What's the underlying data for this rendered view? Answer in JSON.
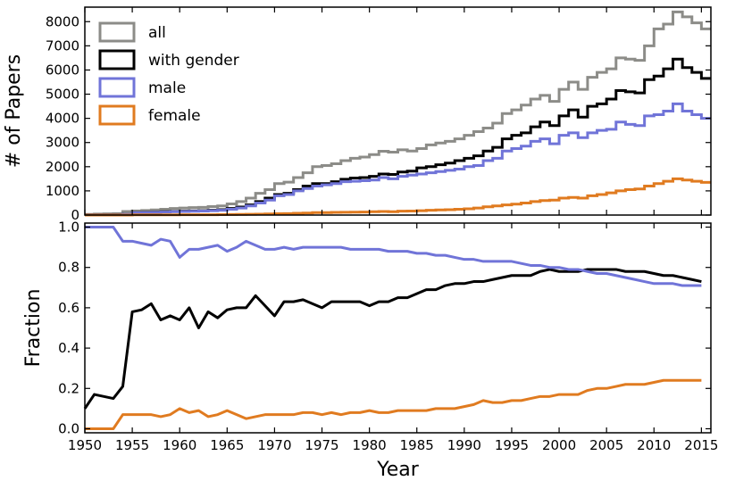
{
  "chart_data": [
    {
      "type": "step",
      "ylabel": "# of Papers",
      "xlim": [
        1950,
        2016
      ],
      "ylim": [
        0,
        8600
      ],
      "yticks": [
        0,
        1000,
        2000,
        3000,
        4000,
        5000,
        6000,
        7000,
        8000
      ],
      "legend": {
        "placement": "top-left",
        "entries": [
          "all",
          "with gender",
          "male",
          "female"
        ]
      },
      "x": [
        1950,
        1951,
        1952,
        1953,
        1954,
        1955,
        1956,
        1957,
        1958,
        1959,
        1960,
        1961,
        1962,
        1963,
        1964,
        1965,
        1966,
        1967,
        1968,
        1969,
        1970,
        1971,
        1972,
        1973,
        1974,
        1975,
        1976,
        1977,
        1978,
        1979,
        1980,
        1981,
        1982,
        1983,
        1984,
        1985,
        1986,
        1987,
        1988,
        1989,
        1990,
        1991,
        1992,
        1993,
        1994,
        1995,
        1996,
        1997,
        1998,
        1999,
        2000,
        2001,
        2002,
        2003,
        2004,
        2005,
        2006,
        2007,
        2008,
        2009,
        2010,
        2011,
        2012,
        2013,
        2014,
        2015
      ],
      "series": [
        {
          "name": "all",
          "color": "#8c8c88",
          "values": [
            30,
            40,
            50,
            60,
            150,
            170,
            190,
            210,
            240,
            270,
            290,
            310,
            320,
            350,
            380,
            460,
            560,
            700,
            900,
            1050,
            1300,
            1360,
            1550,
            1750,
            2000,
            2050,
            2120,
            2250,
            2350,
            2400,
            2500,
            2640,
            2600,
            2700,
            2650,
            2750,
            2900,
            2980,
            3050,
            3150,
            3300,
            3450,
            3600,
            3800,
            4200,
            4350,
            4550,
            4800,
            4950,
            4700,
            5200,
            5500,
            5200,
            5700,
            5900,
            6050,
            6500,
            6450,
            6400,
            7000,
            7700,
            7900,
            8400,
            8200,
            7950,
            7700
          ]
        },
        {
          "name": "with gender",
          "color": "#000000",
          "values": [
            10,
            10,
            10,
            10,
            30,
            100,
            110,
            120,
            140,
            150,
            160,
            170,
            180,
            200,
            220,
            270,
            330,
            420,
            560,
            700,
            850,
            900,
            1050,
            1200,
            1300,
            1300,
            1380,
            1480,
            1530,
            1550,
            1600,
            1700,
            1680,
            1780,
            1820,
            1950,
            2000,
            2080,
            2150,
            2250,
            2350,
            2450,
            2650,
            2800,
            3150,
            3300,
            3400,
            3650,
            3850,
            3700,
            4100,
            4350,
            4050,
            4500,
            4600,
            4800,
            5150,
            5100,
            5050,
            5600,
            5750,
            6050,
            6450,
            6100,
            5900,
            5650
          ]
        },
        {
          "name": "male",
          "color": "#7074d8",
          "values": [
            10,
            10,
            10,
            10,
            30,
            95,
            100,
            110,
            125,
            140,
            150,
            155,
            165,
            180,
            200,
            240,
            290,
            380,
            500,
            620,
            800,
            850,
            1000,
            1100,
            1200,
            1250,
            1300,
            1380,
            1400,
            1420,
            1450,
            1550,
            1500,
            1600,
            1650,
            1700,
            1750,
            1800,
            1850,
            1900,
            2000,
            2050,
            2250,
            2350,
            2650,
            2750,
            2850,
            3050,
            3150,
            2950,
            3300,
            3400,
            3200,
            3400,
            3500,
            3550,
            3850,
            3750,
            3700,
            4100,
            4150,
            4300,
            4600,
            4300,
            4150,
            4000
          ]
        },
        {
          "name": "female",
          "color": "#e07b20",
          "values": [
            0,
            0,
            0,
            0,
            2,
            8,
            8,
            9,
            10,
            10,
            12,
            14,
            14,
            16,
            18,
            22,
            28,
            32,
            36,
            45,
            55,
            60,
            75,
            85,
            100,
            100,
            110,
            115,
            120,
            125,
            140,
            150,
            140,
            160,
            165,
            180,
            200,
            210,
            220,
            240,
            260,
            290,
            340,
            380,
            420,
            450,
            500,
            560,
            600,
            620,
            700,
            730,
            700,
            800,
            850,
            920,
            1000,
            1050,
            1080,
            1200,
            1300,
            1400,
            1500,
            1450,
            1400,
            1350
          ]
        }
      ]
    },
    {
      "type": "line",
      "xlabel": "Year",
      "ylabel": "Fraction",
      "xlim": [
        1950,
        2016
      ],
      "ylim": [
        -0.02,
        1.02
      ],
      "yticks": [
        0.0,
        0.2,
        0.4,
        0.6,
        0.8,
        1.0
      ],
      "ytick_labels": [
        "0.0",
        "0.2",
        "0.4",
        "0.6",
        "0.8",
        "1.0"
      ],
      "xticks": [
        1950,
        1955,
        1960,
        1965,
        1970,
        1975,
        1980,
        1985,
        1990,
        1995,
        2000,
        2005,
        2010,
        2015
      ],
      "xtick_labels": [
        "1950",
        "1955",
        "1960",
        "1965",
        "1970",
        "1975",
        "1980",
        "1985",
        "1990",
        "1995",
        "2000",
        "2005",
        "2010",
        "2015"
      ],
      "x": [
        1950,
        1951,
        1952,
        1953,
        1954,
        1955,
        1956,
        1957,
        1958,
        1959,
        1960,
        1961,
        1962,
        1963,
        1964,
        1965,
        1966,
        1967,
        1968,
        1969,
        1970,
        1971,
        1972,
        1973,
        1974,
        1975,
        1976,
        1977,
        1978,
        1979,
        1980,
        1981,
        1982,
        1983,
        1984,
        1985,
        1986,
        1987,
        1988,
        1989,
        1990,
        1991,
        1992,
        1993,
        1994,
        1995,
        1996,
        1997,
        1998,
        1999,
        2000,
        2001,
        2002,
        2003,
        2004,
        2005,
        2006,
        2007,
        2008,
        2009,
        2010,
        2011,
        2012,
        2013,
        2014,
        2015
      ],
      "series": [
        {
          "name": "with gender",
          "color": "#000000",
          "values": [
            0.1,
            0.17,
            0.16,
            0.15,
            0.21,
            0.58,
            0.59,
            0.62,
            0.54,
            0.56,
            0.54,
            0.6,
            0.5,
            0.58,
            0.55,
            0.59,
            0.6,
            0.6,
            0.66,
            0.61,
            0.56,
            0.63,
            0.63,
            0.64,
            0.62,
            0.6,
            0.63,
            0.63,
            0.63,
            0.63,
            0.61,
            0.63,
            0.63,
            0.65,
            0.65,
            0.67,
            0.69,
            0.69,
            0.71,
            0.72,
            0.72,
            0.73,
            0.73,
            0.74,
            0.75,
            0.76,
            0.76,
            0.76,
            0.78,
            0.79,
            0.78,
            0.78,
            0.78,
            0.79,
            0.79,
            0.79,
            0.79,
            0.78,
            0.78,
            0.78,
            0.77,
            0.76,
            0.76,
            0.75,
            0.74,
            0.73
          ]
        },
        {
          "name": "male",
          "color": "#7074d8",
          "values": [
            1.0,
            1.0,
            1.0,
            1.0,
            0.93,
            0.93,
            0.92,
            0.91,
            0.94,
            0.93,
            0.85,
            0.89,
            0.89,
            0.9,
            0.91,
            0.88,
            0.9,
            0.93,
            0.91,
            0.89,
            0.89,
            0.9,
            0.89,
            0.9,
            0.9,
            0.9,
            0.9,
            0.9,
            0.89,
            0.89,
            0.89,
            0.89,
            0.88,
            0.88,
            0.88,
            0.87,
            0.87,
            0.86,
            0.86,
            0.85,
            0.84,
            0.84,
            0.83,
            0.83,
            0.83,
            0.83,
            0.82,
            0.81,
            0.81,
            0.8,
            0.8,
            0.79,
            0.79,
            0.78,
            0.77,
            0.77,
            0.76,
            0.75,
            0.74,
            0.73,
            0.72,
            0.72,
            0.72,
            0.71,
            0.71,
            0.71
          ]
        },
        {
          "name": "female",
          "color": "#e07b20",
          "values": [
            0.0,
            0.0,
            0.0,
            0.0,
            0.07,
            0.07,
            0.07,
            0.07,
            0.06,
            0.07,
            0.1,
            0.08,
            0.09,
            0.06,
            0.07,
            0.09,
            0.07,
            0.05,
            0.06,
            0.07,
            0.07,
            0.07,
            0.07,
            0.08,
            0.08,
            0.07,
            0.08,
            0.07,
            0.08,
            0.08,
            0.09,
            0.08,
            0.08,
            0.09,
            0.09,
            0.09,
            0.09,
            0.1,
            0.1,
            0.1,
            0.11,
            0.12,
            0.14,
            0.13,
            0.13,
            0.14,
            0.14,
            0.15,
            0.16,
            0.16,
            0.17,
            0.17,
            0.17,
            0.19,
            0.2,
            0.2,
            0.21,
            0.22,
            0.22,
            0.22,
            0.23,
            0.24,
            0.24,
            0.24,
            0.24,
            0.24
          ]
        }
      ]
    }
  ]
}
